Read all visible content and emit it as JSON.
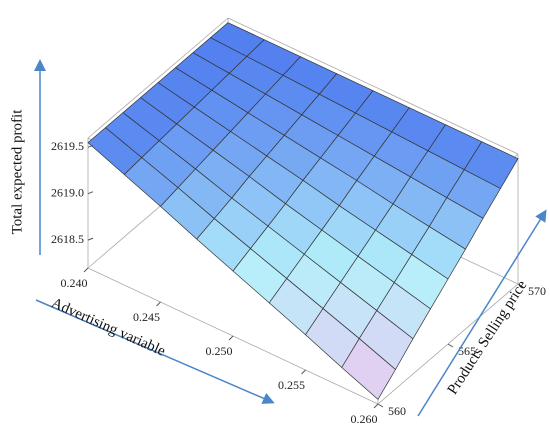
{
  "chart_data": {
    "type": "surface",
    "x_label": "Advertising variable",
    "y_label": "Products Selling price",
    "z_label": "Total expected profit",
    "x": [
      0.24,
      0.2425,
      0.245,
      0.2475,
      0.25,
      0.2525,
      0.255,
      0.2575,
      0.26
    ],
    "y": [
      560,
      561.25,
      562.5,
      563.75,
      565,
      566.25,
      567.5,
      568.75,
      570
    ],
    "z": [
      [
        2619.55,
        2619.55,
        2619.55,
        2619.55,
        2619.55,
        2619.55,
        2619.55,
        2619.55,
        2619.55
      ],
      [
        2619.39,
        2619.41,
        2619.43,
        2619.45,
        2619.47,
        2619.49,
        2619.51,
        2619.53,
        2619.55
      ],
      [
        2619.23,
        2619.27,
        2619.31,
        2619.35,
        2619.39,
        2619.43,
        2619.47,
        2619.51,
        2619.55
      ],
      [
        2619.06,
        2619.12,
        2619.18,
        2619.25,
        2619.31,
        2619.37,
        2619.43,
        2619.49,
        2619.55
      ],
      [
        2618.9,
        2618.98,
        2619.06,
        2619.14,
        2619.23,
        2619.31,
        2619.39,
        2619.47,
        2619.55
      ],
      [
        2618.74,
        2618.84,
        2618.94,
        2619.04,
        2619.14,
        2619.25,
        2619.35,
        2619.45,
        2619.55
      ],
      [
        2618.58,
        2618.7,
        2618.82,
        2618.94,
        2619.06,
        2619.18,
        2619.31,
        2619.43,
        2619.55
      ],
      [
        2618.41,
        2618.56,
        2618.7,
        2618.84,
        2618.98,
        2619.12,
        2619.27,
        2619.41,
        2619.55
      ],
      [
        2618.25,
        2618.41,
        2618.58,
        2618.74,
        2618.9,
        2619.06,
        2619.23,
        2619.39,
        2619.55
      ]
    ],
    "xlim": [
      0.24,
      0.26
    ],
    "ylim": [
      560,
      570
    ],
    "zlim": [
      2618.2,
      2619.6
    ],
    "xticks": [
      {
        "value": 0.24,
        "label": "0.240"
      },
      {
        "value": 0.245,
        "label": "0.245"
      },
      {
        "value": 0.25,
        "label": "0.250"
      },
      {
        "value": 0.255,
        "label": "0.255"
      },
      {
        "value": 0.26,
        "label": "0.260"
      }
    ],
    "yticks": [
      560,
      565,
      570
    ],
    "zticks": [
      2618.5,
      {
        "value": 2619,
        "label": "2619.0"
      },
      2619.5
    ],
    "colormap": [
      "#f3c4f0",
      "#b4f0fa",
      "#4a76ee"
    ],
    "mesh_color": "#333333"
  }
}
